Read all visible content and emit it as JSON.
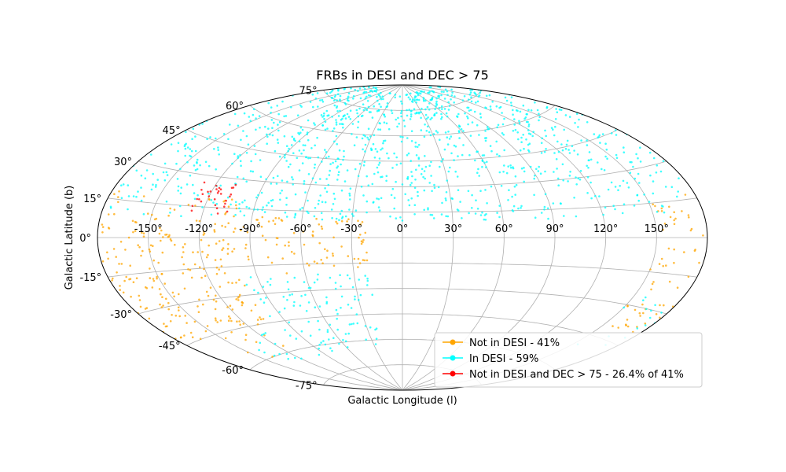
{
  "chart_data": {
    "type": "scatter",
    "projection": "aitoff",
    "title": "FRBs in DESI and DEC > 75",
    "xlabel": "Galactic Longitude (l)",
    "ylabel": "Galactic Latitude (b)",
    "xlim": [
      -180,
      180
    ],
    "ylim": [
      -90,
      90
    ],
    "grid": true,
    "legend_position": "lower-right",
    "lon_ticks": [
      "-150°",
      "-120°",
      "-90°",
      "-60°",
      "-30°",
      "0°",
      "30°",
      "60°",
      "90°",
      "120°",
      "150°"
    ],
    "lat_ticks": [
      "-75°",
      "-60°",
      "-45°",
      "-30°",
      "-15°",
      "0°",
      "15°",
      "30°",
      "45°",
      "60°",
      "75°"
    ],
    "series": [
      {
        "name": "Not in DESI - 41%",
        "color": "#FFA500",
        "regions": [
          {
            "l": [
              -180,
              -100
            ],
            "b": [
              -45,
              20
            ],
            "density": 0.55
          },
          {
            "l": [
              -100,
              -20
            ],
            "b": [
              -20,
              12
            ],
            "density": 0.4
          },
          {
            "l": [
              150,
              180
            ],
            "b": [
              -40,
              20
            ],
            "density": 0.4
          },
          {
            "l": [
              -160,
              -110
            ],
            "b": [
              -60,
              -45
            ],
            "density": 0.15
          }
        ]
      },
      {
        "name": "In DESI - 59%",
        "color": "#00FFFF",
        "regions": [
          {
            "l": [
              -180,
              180
            ],
            "b": [
              10,
              85
            ],
            "density": 0.5
          },
          {
            "l": [
              -100,
              -20
            ],
            "b": [
              -65,
              -20
            ],
            "density": 0.35
          },
          {
            "l": [
              150,
              180
            ],
            "b": [
              -55,
              -25
            ],
            "density": 0.2
          },
          {
            "l": [
              -140,
              -100
            ],
            "b": [
              -65,
              -45
            ],
            "density": 0.2
          }
        ]
      },
      {
        "name": "Not in DESI and DEC > 75 - 26.4% of 41%",
        "color": "#FF0000",
        "regions": [
          {
            "l": [
              -130,
              -105
            ],
            "b": [
              12,
              27
            ],
            "density": 1.0
          }
        ]
      }
    ]
  }
}
